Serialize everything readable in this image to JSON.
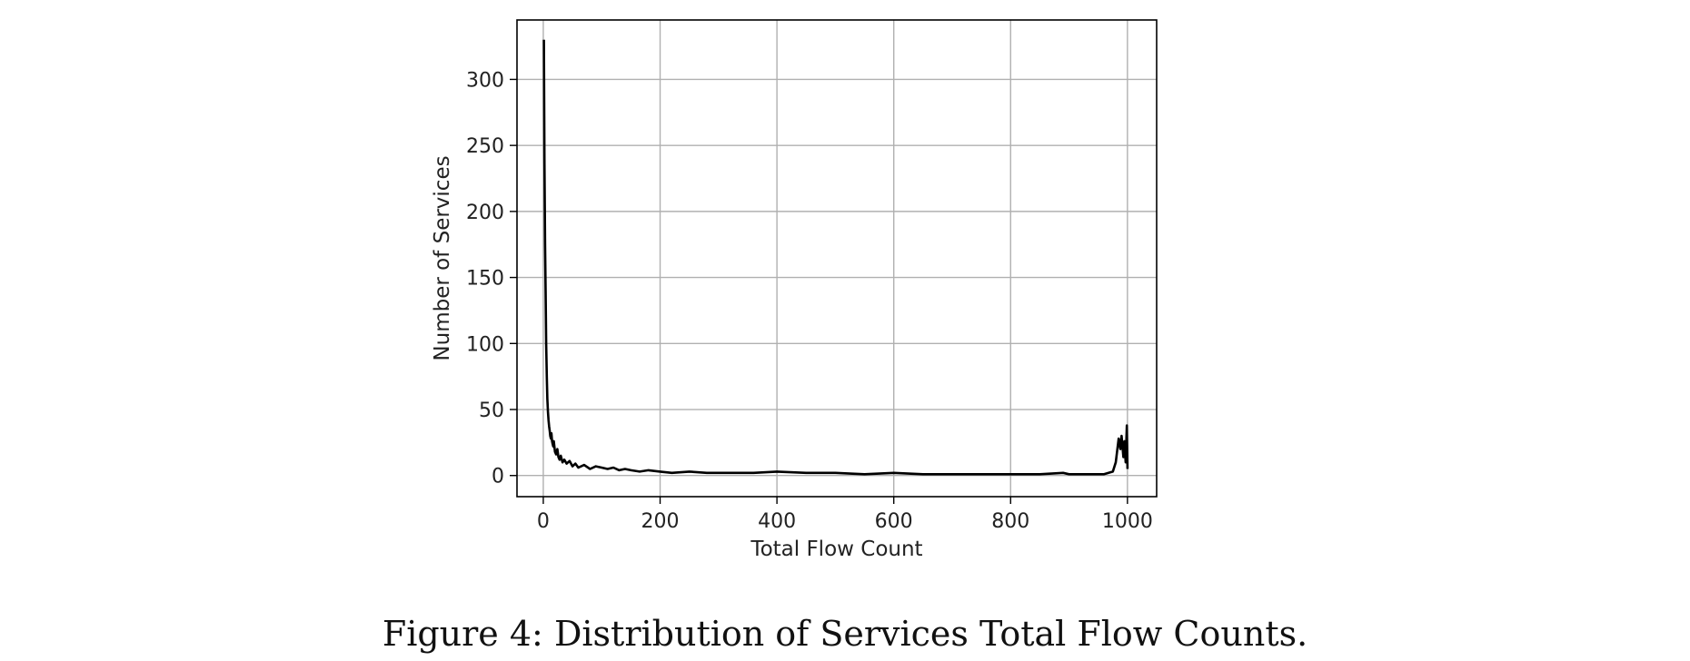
{
  "chart_data": {
    "type": "line",
    "xlabel": "Total Flow Count",
    "ylabel": "Number of Services",
    "xlim": [
      -45,
      1050
    ],
    "ylim": [
      -16,
      345
    ],
    "xticks": [
      0,
      200,
      400,
      600,
      800,
      1000
    ],
    "yticks": [
      0,
      50,
      100,
      150,
      200,
      250,
      300
    ],
    "grid": true,
    "colors": {
      "line": "#000000",
      "grid": "#b0b0b0",
      "frame": "#000000"
    },
    "series": [
      {
        "x": [
          1,
          2,
          3,
          4,
          5,
          6,
          7,
          8,
          9,
          10,
          11,
          12,
          13,
          14,
          15,
          16,
          17,
          18,
          20,
          22,
          24,
          26,
          28,
          30,
          33,
          36,
          40,
          45,
          50,
          55,
          60,
          70,
          80,
          90,
          100,
          110,
          120,
          130,
          140,
          150,
          165,
          180,
          200,
          220,
          250,
          280,
          320,
          360,
          400,
          450,
          500,
          550,
          600,
          650,
          700,
          750,
          800,
          850,
          890,
          900,
          930,
          960,
          975,
          980,
          985,
          988,
          990,
          993,
          995,
          997,
          999,
          1000
        ],
        "y": [
          330,
          240,
          175,
          140,
          100,
          75,
          58,
          48,
          42,
          37,
          34,
          30,
          28,
          32,
          26,
          24,
          22,
          26,
          18,
          16,
          20,
          14,
          12,
          15,
          10,
          12,
          9,
          11,
          7,
          9,
          6,
          8,
          5,
          7,
          6,
          5,
          6,
          4,
          5,
          4,
          3,
          4,
          3,
          2,
          3,
          2,
          2,
          2,
          3,
          2,
          2,
          1,
          2,
          1,
          1,
          1,
          1,
          1,
          2,
          1,
          1,
          1,
          3,
          10,
          28,
          20,
          30,
          14,
          26,
          10,
          38,
          5
        ]
      }
    ]
  },
  "caption": "Figure 4: Distribution of Services Total Flow Counts."
}
